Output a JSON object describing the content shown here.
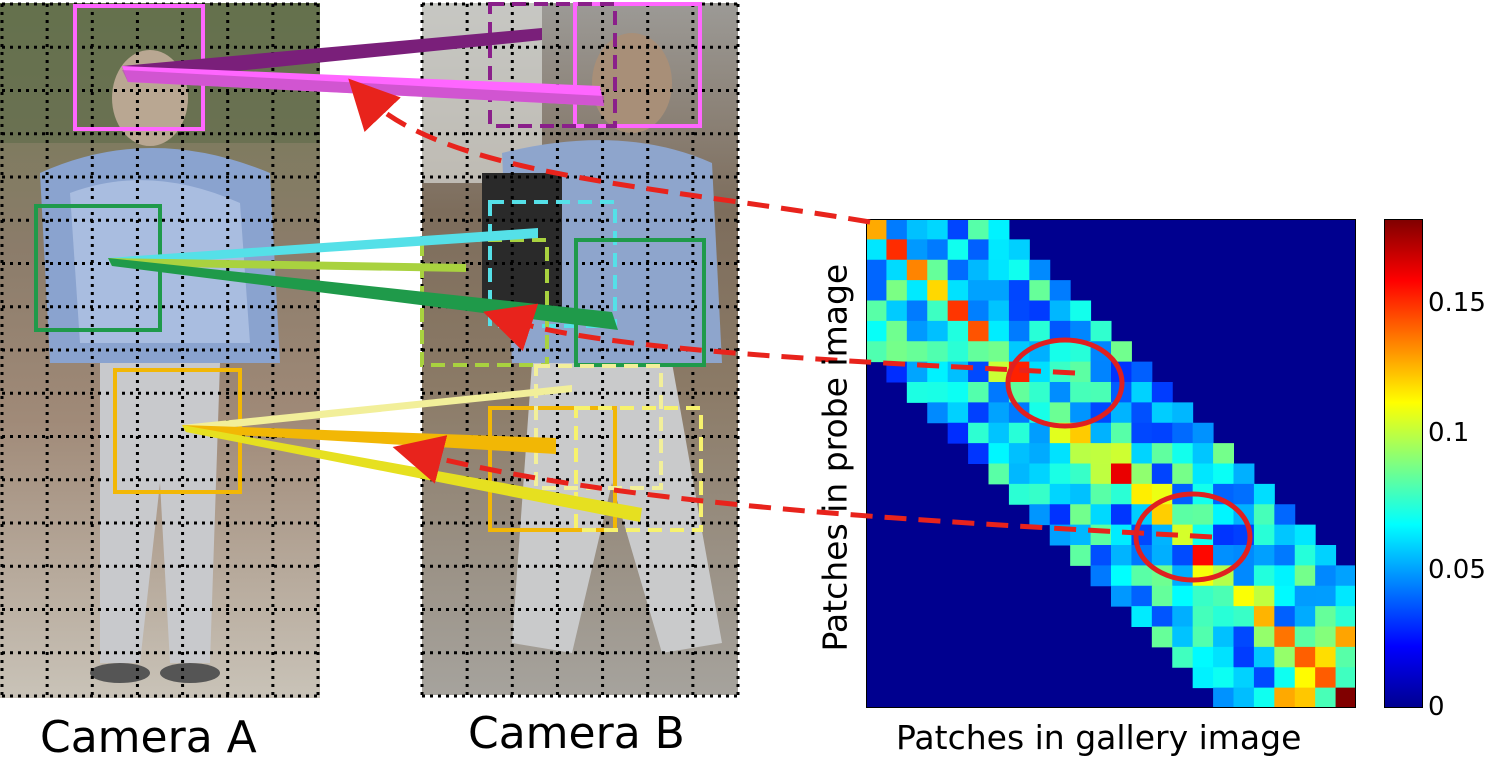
{
  "captions": {
    "camera_a": "Camera A",
    "camera_b": "Camera B"
  },
  "heatmap": {
    "xlabel": "Patches in gallery image",
    "ylabel": "Patches in probe image",
    "colorbar_ticks": [
      "0.15",
      "0.1",
      "0.05",
      "0"
    ],
    "colorbar_range": [
      0,
      0.18
    ],
    "colormap": "jet",
    "grid_size": 24,
    "band_halfwidth": 6
  },
  "matches": [
    {
      "name": "head-match",
      "colors": [
        "#7a1f7a",
        "#ff66ff"
      ]
    },
    {
      "name": "torso-match",
      "colors": [
        "#55e0e8",
        "#1f9a4a",
        "#a9d23f"
      ]
    },
    {
      "name": "leg-match",
      "colors": [
        "#f2b705",
        "#f7f26d",
        "#e6e26e"
      ]
    }
  ],
  "colors": {
    "arrow": "#e8231c",
    "circle": "#e02020"
  }
}
